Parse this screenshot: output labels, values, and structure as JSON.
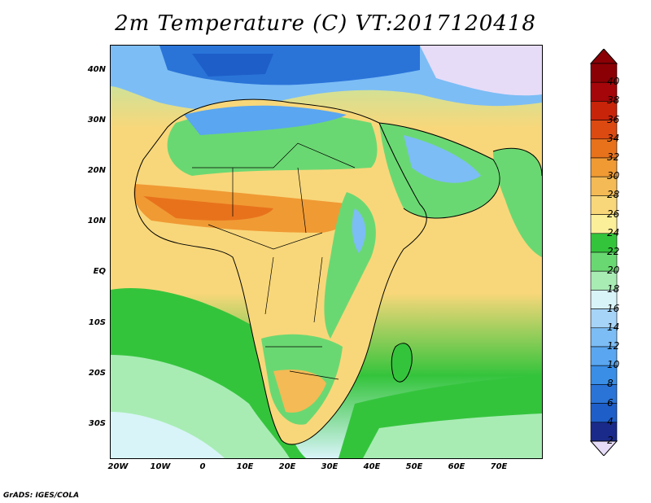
{
  "title": "2m Temperature (C) VT:2017120418",
  "credit": "GrADS: IGES/COLA",
  "lat_labels": [
    "40N",
    "30N",
    "20N",
    "10N",
    "EQ",
    "10S",
    "20S",
    "30S"
  ],
  "lon_labels": [
    "20W",
    "10W",
    "0",
    "10E",
    "20E",
    "30E",
    "40E",
    "50E",
    "60E",
    "70E"
  ],
  "colorbar": {
    "levels": [
      2,
      4,
      6,
      8,
      10,
      12,
      14,
      16,
      18,
      20,
      22,
      24,
      26,
      28,
      30,
      32,
      34,
      36,
      38,
      40
    ],
    "labels": [
      "40",
      "38",
      "36",
      "34",
      "32",
      "30",
      "28",
      "26",
      "24",
      "22",
      "20",
      "18",
      "16",
      "14",
      "12",
      "10",
      "8",
      "6",
      "4",
      "2"
    ],
    "colors": [
      "#1a2a8a",
      "#1e5ec8",
      "#2a74d8",
      "#3a8ee6",
      "#5aa6f0",
      "#7cbdf5",
      "#a6d4f8",
      "#d8f4f8",
      "#a8ecb4",
      "#6ad872",
      "#34c43c",
      "#fbef9a",
      "#f8d77a",
      "#f4ba55",
      "#f09a34",
      "#e8721c",
      "#dc4a12",
      "#c8240a",
      "#a4060a",
      "#8a0005"
    ],
    "low_color": "#e6dcf8",
    "high_color": "#8a0005"
  }
}
